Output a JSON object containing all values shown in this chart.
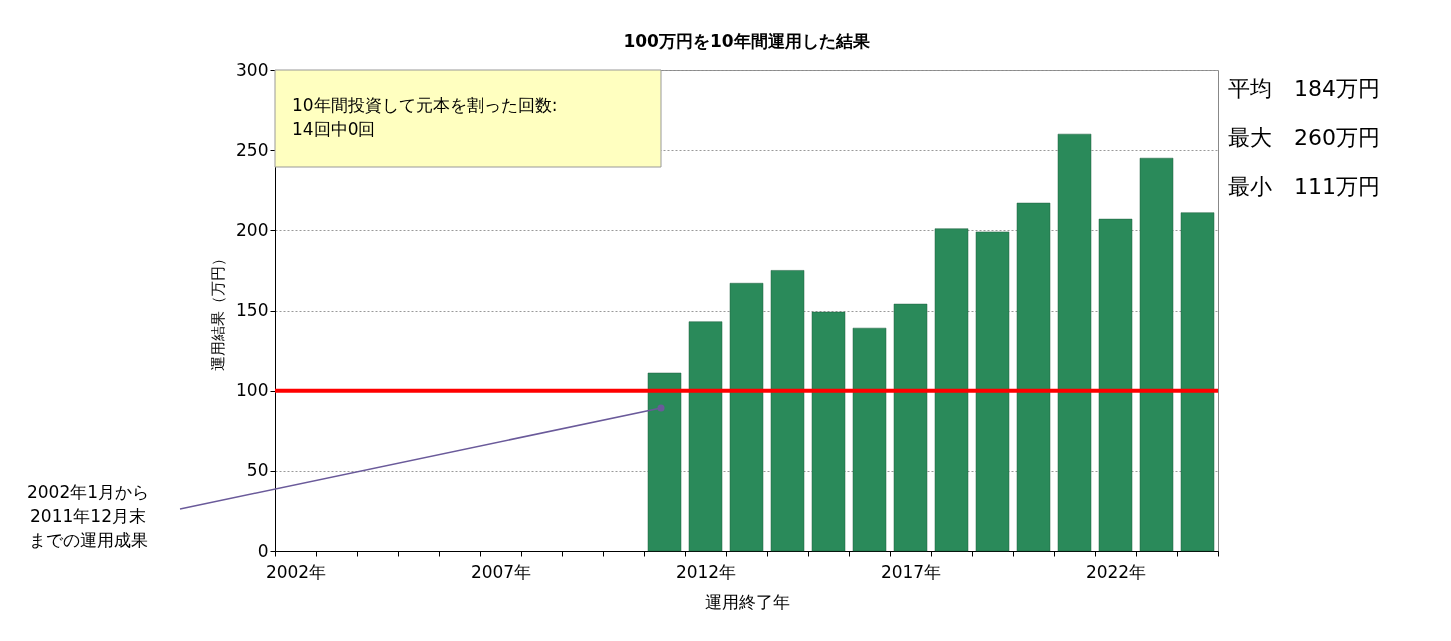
{
  "chart_data": {
    "type": "bar",
    "title": "100万円を10年間運用した結果",
    "xlabel": "運用終了年",
    "ylabel": "運用結果（万円）",
    "categories": [
      "2002年",
      null,
      null,
      null,
      null,
      "2007年",
      null,
      null,
      null,
      null,
      "2012年",
      null,
      null,
      null,
      null,
      "2017年",
      null,
      null,
      null,
      null,
      "2022年",
      null,
      null
    ],
    "values": [
      null,
      null,
      null,
      null,
      null,
      null,
      null,
      null,
      null,
      111,
      143,
      167,
      175,
      149,
      139,
      154,
      201,
      199,
      217,
      260,
      207,
      245,
      211
    ],
    "color": "#2a8a5a",
    "ylim": [
      0,
      300
    ],
    "yticks": [
      0,
      50,
      100,
      150,
      200,
      250,
      300
    ],
    "grid": "y",
    "ref_lines": [
      {
        "axis": "y",
        "value": 100,
        "color": "#ff0000"
      }
    ],
    "annotations": [
      "10年間投資して元本を割った回数:\n14回中0回",
      "2002年1月から2011年12月末までの運用成果",
      "平均　184万円",
      "最大　260万円",
      "最小　111万円"
    ]
  }
}
